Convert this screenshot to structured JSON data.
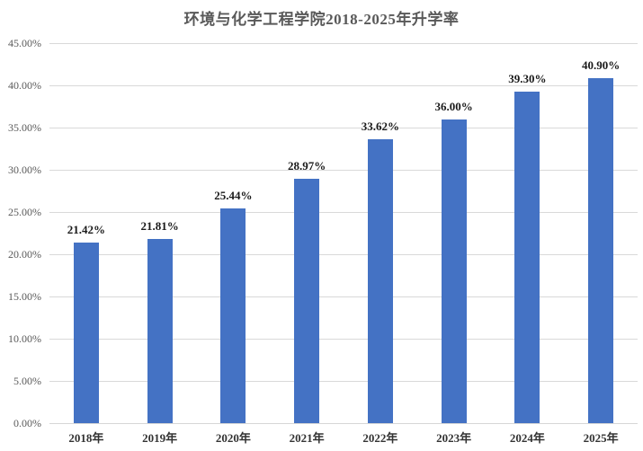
{
  "chart_data": {
    "type": "bar",
    "title": "环境与化学工程学院2018-2025年升学率",
    "categories": [
      "2018年",
      "2019年",
      "2020年",
      "2021年",
      "2022年",
      "2023年",
      "2024年",
      "2025年"
    ],
    "values": [
      21.42,
      21.81,
      25.44,
      28.97,
      33.62,
      36.0,
      39.3,
      40.9
    ],
    "data_labels": [
      "21.42%",
      "21.81%",
      "25.44%",
      "28.97%",
      "33.62%",
      "36.00%",
      "39.30%",
      "40.90%"
    ],
    "y_tick_labels": [
      "0.00%",
      "5.00%",
      "10.00%",
      "15.00%",
      "20.00%",
      "25.00%",
      "30.00%",
      "35.00%",
      "40.00%",
      "45.00%"
    ],
    "ylim": [
      0,
      45
    ],
    "y_tick_step": 5,
    "xlabel": "",
    "ylabel": "",
    "grid": true,
    "legend": "none",
    "bar_color": "#4472c4",
    "gridline_color": "#d9d9d9",
    "axis_line_color": "#d6d6d6",
    "title_color": "#595959",
    "y_tick_color": "#595959",
    "x_tick_color": "#333333",
    "data_label_color": "#1a1a1a"
  }
}
